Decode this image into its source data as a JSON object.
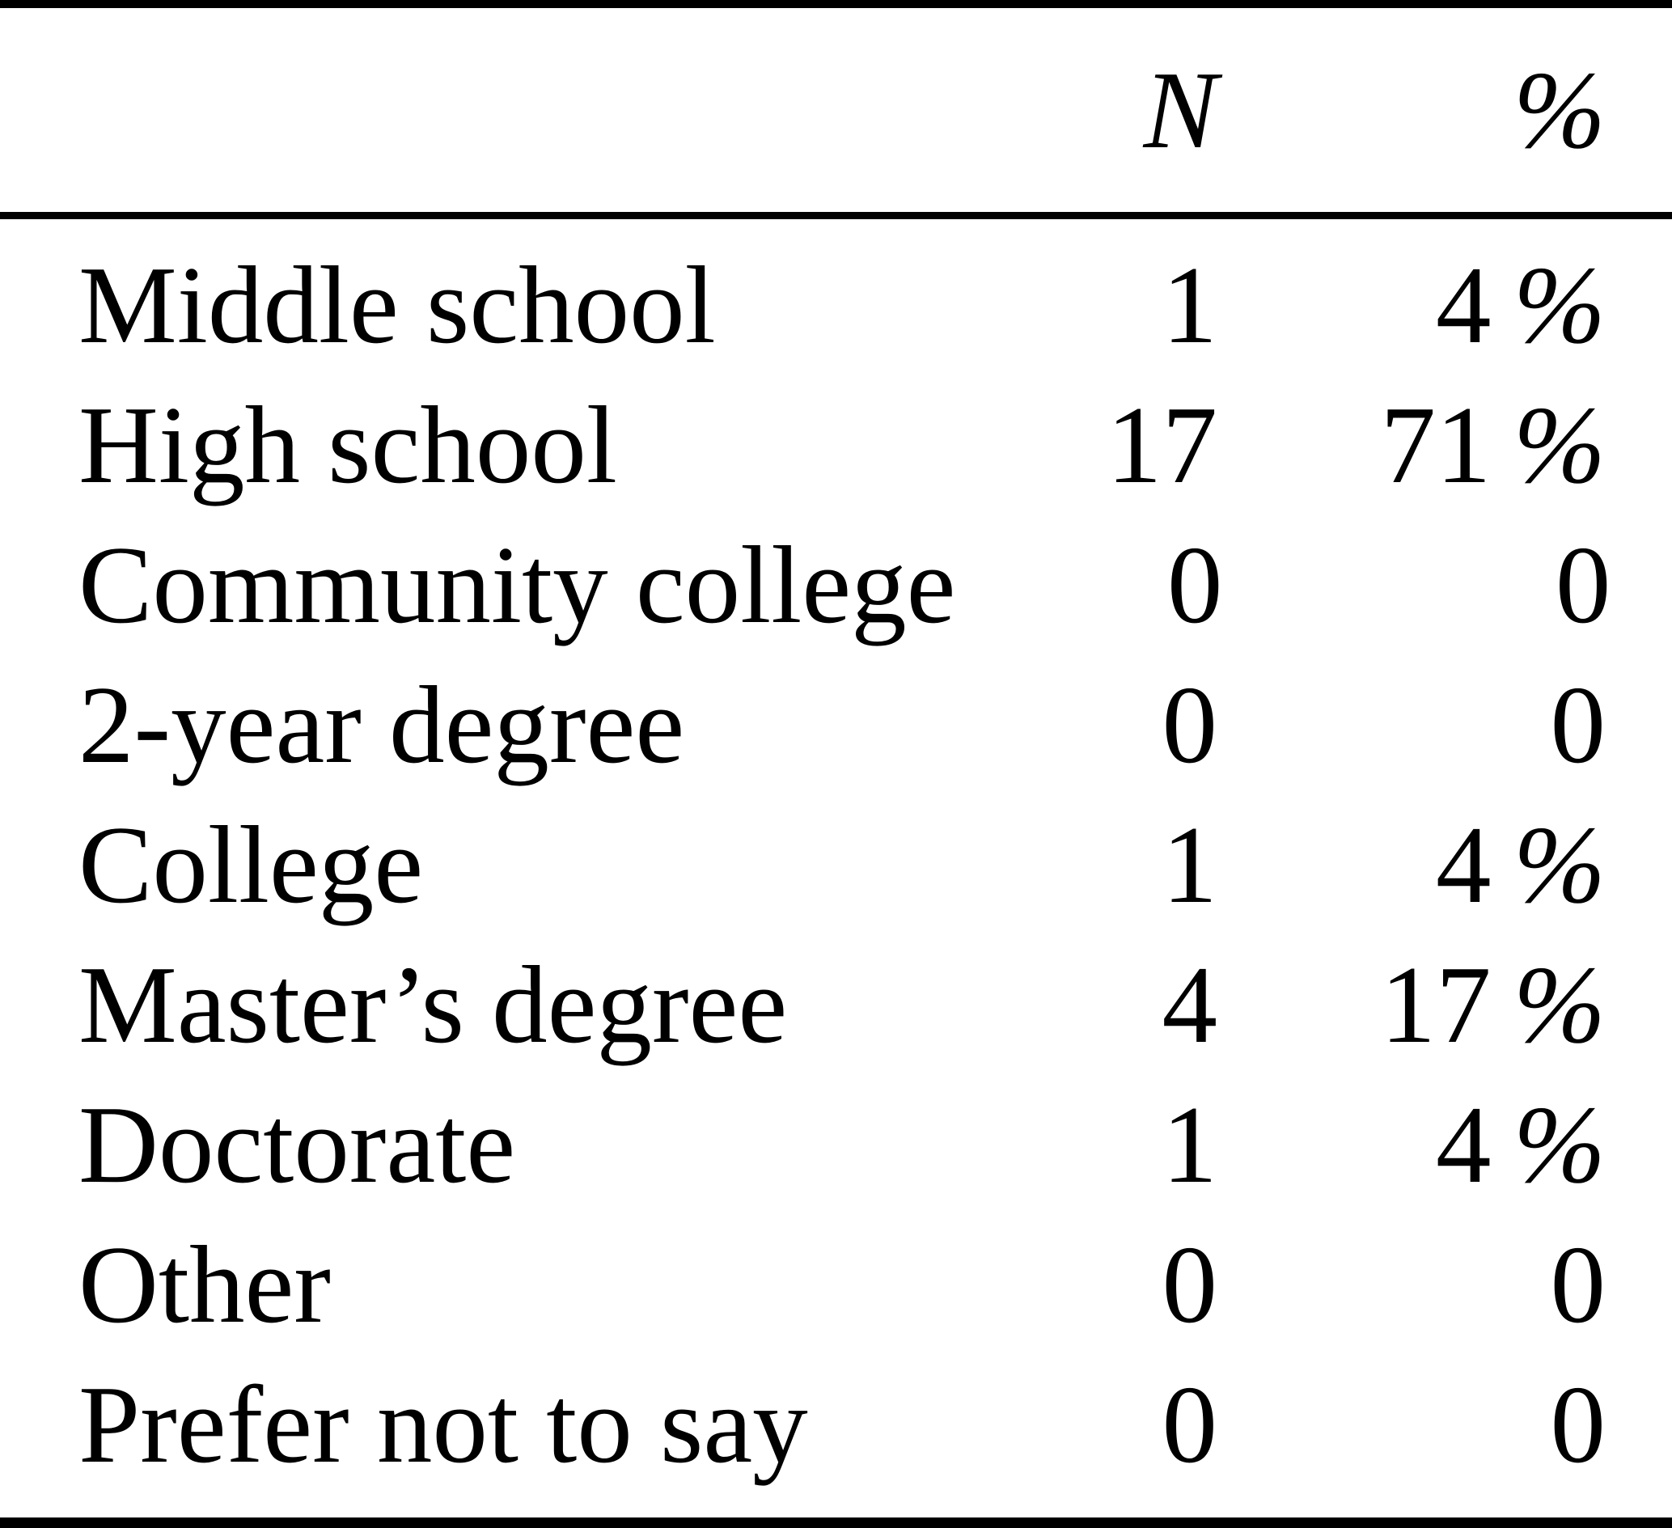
{
  "table": {
    "header": {
      "n": "N",
      "pct": "%"
    },
    "rows": [
      {
        "label": "Middle school",
        "n": "1",
        "pct_value": "4",
        "pct_sign": "%"
      },
      {
        "label": "High school",
        "n": "17",
        "pct_value": "71",
        "pct_sign": "%"
      },
      {
        "label": "Community college",
        "n": "0",
        "pct_value": "0",
        "pct_sign": ""
      },
      {
        "label": "2-year degree",
        "n": "0",
        "pct_value": "0",
        "pct_sign": ""
      },
      {
        "label": "College",
        "n": "1",
        "pct_value": "4",
        "pct_sign": "%"
      },
      {
        "label": "Master’s degree",
        "n": "4",
        "pct_value": "17",
        "pct_sign": "%"
      },
      {
        "label": "Doctorate",
        "n": "1",
        "pct_value": "4",
        "pct_sign": "%"
      },
      {
        "label": "Other",
        "n": "0",
        "pct_value": "0",
        "pct_sign": ""
      },
      {
        "label": "Prefer not to say",
        "n": "0",
        "pct_value": "0",
        "pct_sign": ""
      }
    ]
  },
  "colors": {
    "text": "#000000",
    "background": "#ffffff",
    "rule": "#000000"
  },
  "chart_data": {
    "type": "table",
    "title": "",
    "columns": [
      "",
      "N",
      "%"
    ],
    "rows": [
      [
        "Middle school",
        1,
        "4 %"
      ],
      [
        "High school",
        17,
        "71 %"
      ],
      [
        "Community college",
        0,
        "0"
      ],
      [
        "2-year degree",
        0,
        "0"
      ],
      [
        "College",
        1,
        "4 %"
      ],
      [
        "Master’s degree",
        4,
        "17 %"
      ],
      [
        "Doctorate",
        1,
        "4 %"
      ],
      [
        "Other",
        0,
        "0"
      ],
      [
        "Prefer not to say",
        0,
        "0"
      ]
    ]
  }
}
